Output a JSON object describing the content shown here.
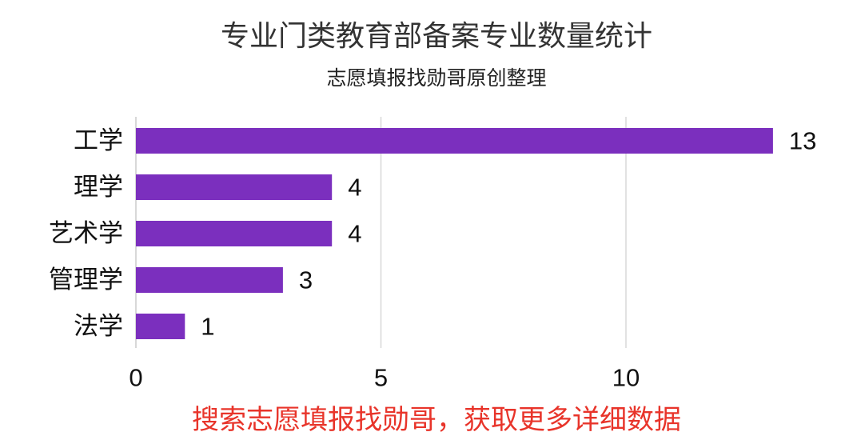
{
  "title": "专业门类教育部备案专业数量统计",
  "subtitle": "志愿填报找勋哥原创整理",
  "footer": "搜索志愿填报找勋哥，获取更多详细数据",
  "colors": {
    "bar": "#7b2fbe",
    "grid": "#d8d8d8",
    "footer": "#e8342a"
  },
  "chart_data": {
    "type": "bar",
    "orientation": "horizontal",
    "categories": [
      "工学",
      "理学",
      "艺术学",
      "管理学",
      "法学"
    ],
    "values": [
      13,
      4,
      4,
      3,
      1
    ],
    "xlim": [
      0,
      14
    ],
    "xticks": [
      0,
      5,
      10
    ],
    "grid": true,
    "title": "专业门类教育部备案专业数量统计",
    "subtitle": "志愿填报找勋哥原创整理"
  }
}
